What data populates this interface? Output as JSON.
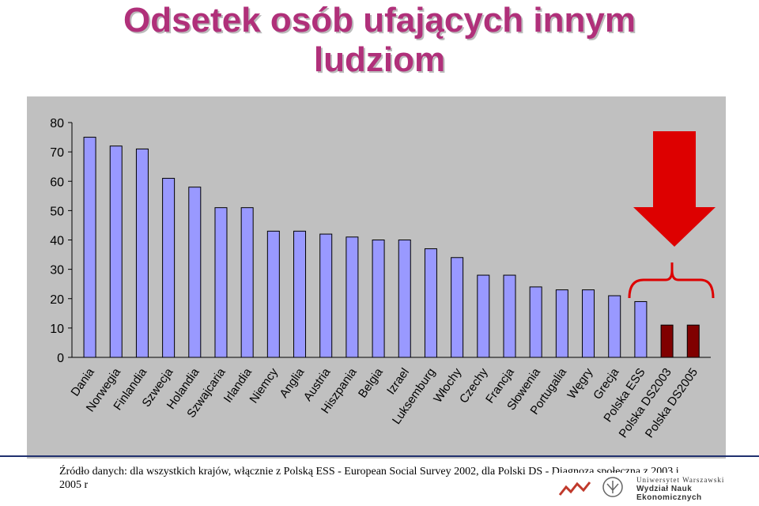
{
  "title": {
    "line1": "Odsetek osób ufających innym",
    "line2": "ludziom"
  },
  "chart_data": {
    "type": "bar",
    "categories": [
      "Dania",
      "Norwegia",
      "Finlandia",
      "Szwecja",
      "Holandia",
      "Szwajcaria",
      "Irlandia",
      "Niemcy",
      "Anglia",
      "Austria",
      "Hiszpania",
      "Belgia",
      "Izrael",
      "Luksemburg",
      "Włochy",
      "Czechy",
      "Francja",
      "Słowenia",
      "Portugalia",
      "Węgry",
      "Grecja",
      "Polska ESS",
      "Polska DS2003",
      "Polska DS2005"
    ],
    "values": [
      75,
      72,
      71,
      61,
      58,
      51,
      51,
      43,
      43,
      42,
      41,
      40,
      40,
      37,
      34,
      28,
      28,
      24,
      23,
      23,
      21,
      19,
      11,
      11
    ],
    "yticks": [
      "0",
      "10",
      "20",
      "30",
      "40",
      "50",
      "60",
      "70",
      "80"
    ],
    "ylim": [
      0,
      80
    ],
    "grid": false,
    "colors": {
      "bar": "#9999ff",
      "bar_highlight": "#800000",
      "arrow": "#dd0000",
      "plot_background": "#c0c0c0"
    }
  },
  "footer": {
    "source_text": "Źródło danych: dla wszystkich krajów, włącznie z Polską ESS - European Social Survey 2002, dla Polski DS - Diagnoza społeczna z 2003 i 2005 r",
    "logo_line1": "Uniwersytet Warszawski",
    "logo_line2": "Wydział Nauk Ekonomicznych"
  }
}
